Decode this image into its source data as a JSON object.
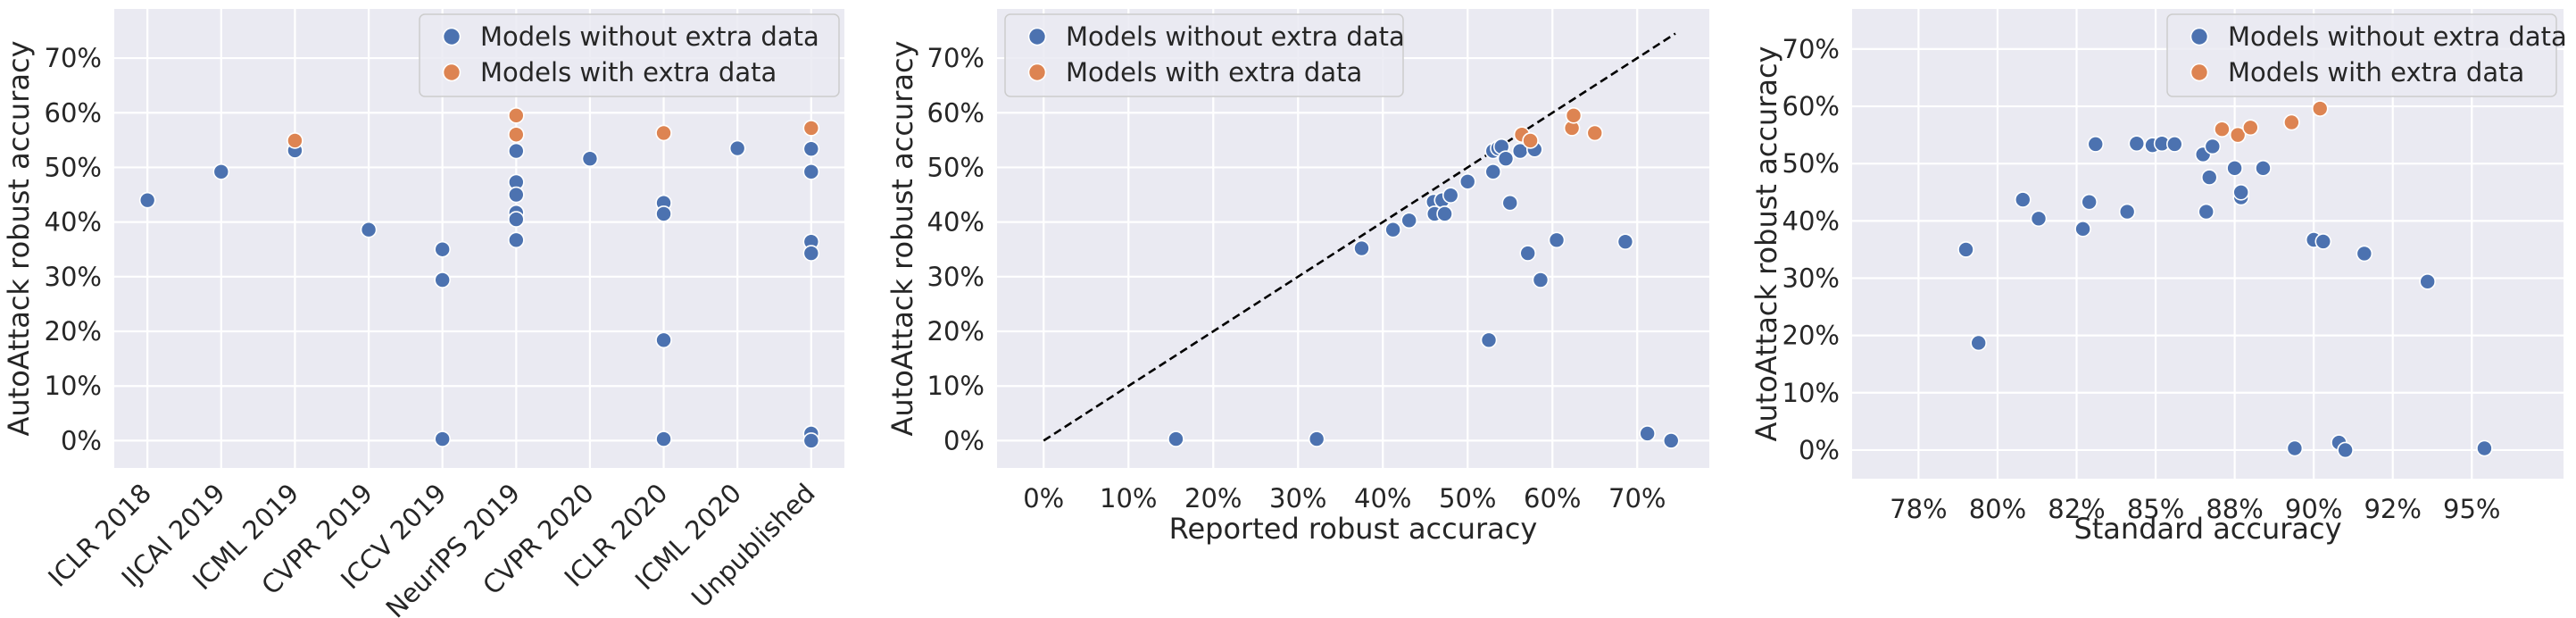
{
  "colors": {
    "without": "#4c72b0",
    "with": "#dd8452",
    "panel_bg": "#eaeaf2"
  },
  "chart_data": [
    {
      "type": "scatter",
      "xlabel": "",
      "ylabel": "AutoAttack robust accuracy",
      "ylim": [
        -5,
        79
      ],
      "yticks": [
        0,
        10,
        20,
        30,
        40,
        50,
        60,
        70
      ],
      "ytick_labels": [
        "0%",
        "10%",
        "20%",
        "30%",
        "40%",
        "50%",
        "60%",
        "70%"
      ],
      "categories": [
        "ICLR 2018",
        "IJCAI 2019",
        "ICML 2019",
        "CVPR 2019",
        "ICCV 2019",
        "NeurIPS 2019",
        "CVPR 2020",
        "ICLR 2020",
        "ICML 2020",
        "Unpublished"
      ],
      "legend": [
        "Models without extra data",
        "Models with extra data"
      ],
      "legend_loc": "upper right",
      "series": [
        {
          "name": "Models without extra data",
          "points": [
            {
              "x": 0,
              "y": 44.0
            },
            {
              "x": 1,
              "y": 49.2
            },
            {
              "x": 2,
              "y": 53.1
            },
            {
              "x": 3,
              "y": 38.6
            },
            {
              "x": 4,
              "y": 35.0
            },
            {
              "x": 4,
              "y": 29.4
            },
            {
              "x": 4,
              "y": 0.3
            },
            {
              "x": 5,
              "y": 53.0
            },
            {
              "x": 5,
              "y": 47.3
            },
            {
              "x": 5,
              "y": 45.0
            },
            {
              "x": 5,
              "y": 41.7
            },
            {
              "x": 5,
              "y": 40.5
            },
            {
              "x": 5,
              "y": 36.7
            },
            {
              "x": 6,
              "y": 51.6
            },
            {
              "x": 7,
              "y": 43.5
            },
            {
              "x": 7,
              "y": 41.5
            },
            {
              "x": 7,
              "y": 18.4
            },
            {
              "x": 7,
              "y": 0.3
            },
            {
              "x": 8,
              "y": 53.5
            },
            {
              "x": 9,
              "y": 53.4
            },
            {
              "x": 9,
              "y": 49.2
            },
            {
              "x": 9,
              "y": 36.4
            },
            {
              "x": 9,
              "y": 34.3
            },
            {
              "x": 9,
              "y": 1.3
            },
            {
              "x": 9,
              "y": 0.0
            }
          ]
        },
        {
          "name": "Models with extra data",
          "points": [
            {
              "x": 2,
              "y": 54.9
            },
            {
              "x": 5,
              "y": 59.5
            },
            {
              "x": 5,
              "y": 56.0
            },
            {
              "x": 7,
              "y": 56.3
            },
            {
              "x": 9,
              "y": 57.2
            }
          ]
        }
      ]
    },
    {
      "type": "scatter",
      "xlabel": "Reported robust accuracy",
      "ylabel": "AutoAttack robust accuracy",
      "xlim": [
        -5.5,
        78.5
      ],
      "ylim": [
        -5,
        79
      ],
      "xticks": [
        0,
        10,
        20,
        30,
        40,
        50,
        60,
        70
      ],
      "xtick_labels": [
        "0%",
        "10%",
        "20%",
        "30%",
        "40%",
        "50%",
        "60%",
        "70%"
      ],
      "yticks": [
        0,
        10,
        20,
        30,
        40,
        50,
        60,
        70
      ],
      "ytick_labels": [
        "0%",
        "10%",
        "20%",
        "30%",
        "40%",
        "50%",
        "60%",
        "70%"
      ],
      "diagonal": [
        [
          0,
          0
        ],
        [
          74.5,
          74.5
        ]
      ],
      "legend": [
        "Models without extra data",
        "Models with extra data"
      ],
      "legend_loc": "upper left",
      "series": [
        {
          "name": "Models without extra data",
          "points": [
            {
              "x": 15.6,
              "y": 0.3
            },
            {
              "x": 32.2,
              "y": 0.3
            },
            {
              "x": 37.5,
              "y": 35.2
            },
            {
              "x": 41.2,
              "y": 38.6
            },
            {
              "x": 43.1,
              "y": 40.3
            },
            {
              "x": 46.0,
              "y": 43.7
            },
            {
              "x": 46.1,
              "y": 41.5
            },
            {
              "x": 47.0,
              "y": 44.0
            },
            {
              "x": 47.3,
              "y": 41.5
            },
            {
              "x": 48.0,
              "y": 44.9
            },
            {
              "x": 50.0,
              "y": 47.4
            },
            {
              "x": 52.5,
              "y": 18.4
            },
            {
              "x": 53.0,
              "y": 49.2
            },
            {
              "x": 53.0,
              "y": 53.0
            },
            {
              "x": 53.6,
              "y": 53.5
            },
            {
              "x": 54.0,
              "y": 53.8
            },
            {
              "x": 54.5,
              "y": 51.6
            },
            {
              "x": 55.0,
              "y": 43.5
            },
            {
              "x": 56.2,
              "y": 53.0
            },
            {
              "x": 57.1,
              "y": 34.3
            },
            {
              "x": 57.9,
              "y": 53.3
            },
            {
              "x": 58.6,
              "y": 29.4
            },
            {
              "x": 60.5,
              "y": 36.7
            },
            {
              "x": 68.6,
              "y": 36.4
            },
            {
              "x": 71.2,
              "y": 1.3
            },
            {
              "x": 74.0,
              "y": 0.0
            }
          ]
        },
        {
          "name": "Models with extra data",
          "points": [
            {
              "x": 56.4,
              "y": 56.0
            },
            {
              "x": 57.4,
              "y": 54.9
            },
            {
              "x": 62.3,
              "y": 57.2
            },
            {
              "x": 62.5,
              "y": 59.5
            },
            {
              "x": 65.0,
              "y": 56.3
            }
          ]
        }
      ]
    },
    {
      "type": "scatter",
      "xlabel": "Standard accuracy",
      "ylabel": "AutoAttack robust accuracy",
      "xlim": [
        75.4,
        97.9
      ],
      "ylim": [
        -5,
        77
      ],
      "xticks": [
        77.5,
        80,
        82.5,
        85,
        87.5,
        90,
        92.5,
        95
      ],
      "xtick_labels": [
        "78%",
        "80%",
        "82%",
        "85%",
        "88%",
        "90%",
        "92%",
        "95%"
      ],
      "yticks": [
        0,
        10,
        20,
        30,
        40,
        50,
        60,
        70
      ],
      "ytick_labels": [
        "0%",
        "10%",
        "20%",
        "30%",
        "40%",
        "50%",
        "60%",
        "70%"
      ],
      "legend": [
        "Models without extra data",
        "Models with extra data"
      ],
      "legend_loc": "upper right",
      "series": [
        {
          "name": "Models without extra data",
          "points": [
            {
              "x": 79.0,
              "y": 35.0
            },
            {
              "x": 79.4,
              "y": 18.7
            },
            {
              "x": 80.8,
              "y": 43.7
            },
            {
              "x": 81.3,
              "y": 40.4
            },
            {
              "x": 82.7,
              "y": 38.6
            },
            {
              "x": 82.9,
              "y": 43.3
            },
            {
              "x": 83.1,
              "y": 53.4
            },
            {
              "x": 84.1,
              "y": 41.6
            },
            {
              "x": 84.4,
              "y": 53.5
            },
            {
              "x": 84.9,
              "y": 53.2
            },
            {
              "x": 85.2,
              "y": 53.5
            },
            {
              "x": 85.6,
              "y": 53.4
            },
            {
              "x": 86.5,
              "y": 51.6
            },
            {
              "x": 86.6,
              "y": 41.6
            },
            {
              "x": 86.7,
              "y": 47.6
            },
            {
              "x": 86.8,
              "y": 53.0
            },
            {
              "x": 87.5,
              "y": 49.2
            },
            {
              "x": 87.7,
              "y": 44.1
            },
            {
              "x": 87.7,
              "y": 45.0
            },
            {
              "x": 88.4,
              "y": 49.2
            },
            {
              "x": 89.4,
              "y": 0.3
            },
            {
              "x": 90.0,
              "y": 36.7
            },
            {
              "x": 90.3,
              "y": 36.4
            },
            {
              "x": 90.8,
              "y": 1.3
            },
            {
              "x": 91.0,
              "y": 0.0
            },
            {
              "x": 91.6,
              "y": 34.3
            },
            {
              "x": 93.6,
              "y": 29.4
            },
            {
              "x": 95.4,
              "y": 0.3
            }
          ]
        },
        {
          "name": "Models with extra data",
          "points": [
            {
              "x": 87.1,
              "y": 56.0
            },
            {
              "x": 87.6,
              "y": 55.0
            },
            {
              "x": 88.0,
              "y": 56.3
            },
            {
              "x": 89.3,
              "y": 57.2
            },
            {
              "x": 90.2,
              "y": 59.6
            }
          ]
        }
      ]
    }
  ]
}
